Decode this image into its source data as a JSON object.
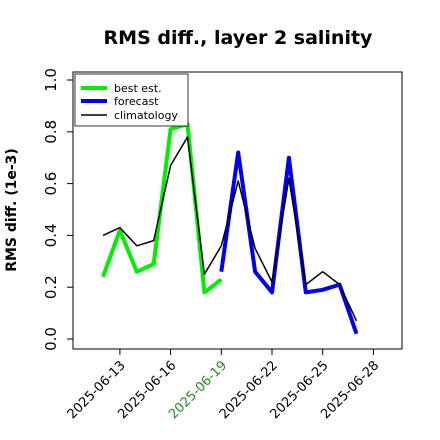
{
  "chart_data": {
    "type": "line",
    "title": "RMS diff., layer 2 salinity",
    "ylabel": "RMS diff. (1e-3)",
    "xlabel": "",
    "ylim": [
      0.0,
      1.0
    ],
    "y_ticks": [
      "0.0",
      "0.2",
      "0.4",
      "0.6",
      "0.8",
      "1.0"
    ],
    "x_tick_labels": [
      "2025-06-13",
      "2025-06-16",
      "2025-06-19",
      "2025-06-22",
      "2025-06-25",
      "2025-06-28"
    ],
    "x_tick_colors": [
      "#000000",
      "#000000",
      "#228b22",
      "#000000",
      "#000000",
      "#000000"
    ],
    "x": [
      "06-12",
      "06-13",
      "06-14",
      "06-15",
      "06-16",
      "06-17",
      "06-18",
      "06-19",
      "06-20",
      "06-21",
      "06-22",
      "06-23",
      "06-24",
      "06-25",
      "06-26",
      "06-27"
    ],
    "series": [
      {
        "name": "best est.",
        "color": "#00ee00",
        "values": [
          0.24,
          0.42,
          0.26,
          0.29,
          0.81,
          0.83,
          0.18,
          0.23,
          null,
          null,
          null,
          null,
          null,
          null,
          0.23,
          null
        ]
      },
      {
        "name": "forecast",
        "color": "#0000ee",
        "values": [
          null,
          null,
          null,
          null,
          null,
          null,
          null,
          0.26,
          0.72,
          0.26,
          0.18,
          0.7,
          0.18,
          0.19,
          0.21,
          0.02
        ]
      },
      {
        "name": "climatology",
        "color": "#000000",
        "values": [
          0.4,
          0.43,
          0.36,
          0.38,
          0.67,
          0.78,
          0.25,
          0.36,
          0.61,
          0.35,
          0.22,
          0.62,
          0.21,
          0.26,
          0.21,
          0.07
        ]
      }
    ],
    "legend": "top-left",
    "grid": false
  }
}
